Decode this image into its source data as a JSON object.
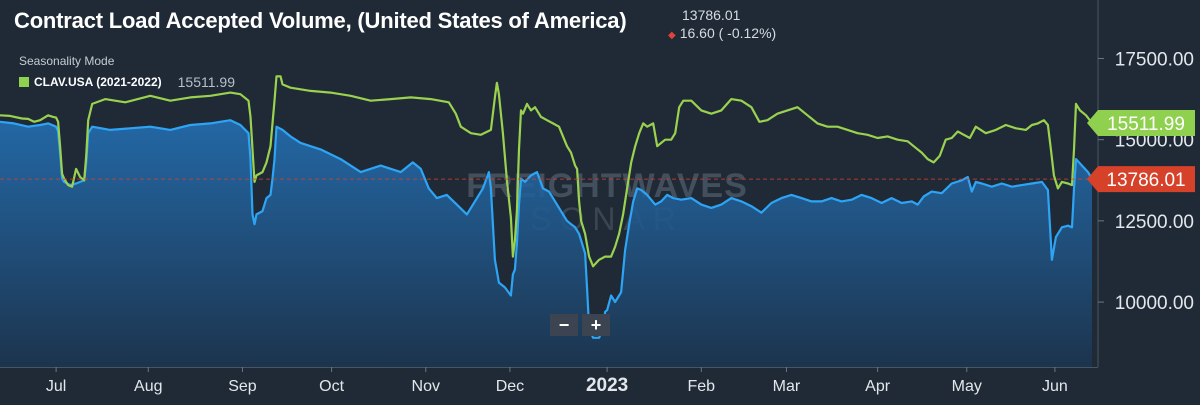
{
  "header": {
    "title": "Contract Load Accepted Volume, (United States of America)",
    "last_value": "13786.01",
    "change": "16.60 ( -0.12%)",
    "mode": "Seasonality Mode",
    "legend_label": "CLAV.USA (2021-2022)",
    "legend_value": "15511.99"
  },
  "watermark": {
    "line1": "FREIGHTWAVES",
    "line2": "SONAR"
  },
  "controls": {
    "zoom_out": "−",
    "zoom_in": "+"
  },
  "colors": {
    "background": "#1f2a36",
    "current": "#2ea4f5",
    "seasonal": "#9ad24f",
    "last_badge": "#d6412a",
    "seasonal_badge": "#8fd14f"
  },
  "chart_data": {
    "type": "line",
    "x_tick_labels": [
      "Jul",
      "Aug",
      "Sep",
      "Oct",
      "Nov",
      "Dec",
      "2023",
      "Feb",
      "Mar",
      "Apr",
      "May",
      "Jun"
    ],
    "y_tick_labels": [
      "17500.00",
      "15000.00",
      "12500.00",
      "10000.00"
    ],
    "ylim": [
      8000,
      19300
    ],
    "series": [
      {
        "name": "CLAV.USA (2021-2022)",
        "values": [
          [
            0,
            15750
          ],
          [
            10,
            15730
          ],
          [
            22,
            15650
          ],
          [
            28,
            15640
          ],
          [
            34,
            15550
          ],
          [
            40,
            15600
          ],
          [
            48,
            15750
          ],
          [
            53,
            15700
          ],
          [
            56,
            15680
          ],
          [
            58,
            15550
          ],
          [
            60,
            14800
          ],
          [
            62,
            13950
          ],
          [
            64,
            13800
          ],
          [
            68,
            13600
          ],
          [
            72,
            13550
          ],
          [
            76,
            14100
          ],
          [
            80,
            13850
          ],
          [
            84,
            13750
          ],
          [
            86,
            14500
          ],
          [
            88,
            15600
          ],
          [
            92,
            16100
          ],
          [
            105,
            16250
          ],
          [
            125,
            16150
          ],
          [
            150,
            16350
          ],
          [
            170,
            16200
          ],
          [
            190,
            16300
          ],
          [
            210,
            16350
          ],
          [
            230,
            16450
          ],
          [
            240,
            16400
          ],
          [
            248,
            16200
          ],
          [
            250,
            15700
          ],
          [
            252,
            14700
          ],
          [
            254,
            13700
          ],
          [
            256,
            13900
          ],
          [
            262,
            14000
          ],
          [
            266,
            14300
          ],
          [
            270,
            14800
          ],
          [
            272,
            15500
          ],
          [
            274,
            16200
          ],
          [
            276,
            16950
          ],
          [
            280,
            16950
          ],
          [
            282,
            16700
          ],
          [
            290,
            16600
          ],
          [
            310,
            16500
          ],
          [
            330,
            16450
          ],
          [
            350,
            16350
          ],
          [
            370,
            16200
          ],
          [
            390,
            16250
          ],
          [
            410,
            16300
          ],
          [
            430,
            16250
          ],
          [
            448,
            16150
          ],
          [
            455,
            15800
          ],
          [
            460,
            15400
          ],
          [
            470,
            15200
          ],
          [
            480,
            15150
          ],
          [
            490,
            15300
          ],
          [
            494,
            16300
          ],
          [
            496,
            16750
          ],
          [
            498,
            16400
          ],
          [
            502,
            15200
          ],
          [
            506,
            13750
          ],
          [
            510,
            12600
          ],
          [
            512,
            11400
          ],
          [
            514,
            11900
          ],
          [
            516,
            12800
          ],
          [
            518,
            14700
          ],
          [
            520,
            15900
          ],
          [
            522,
            15800
          ],
          [
            526,
            16100
          ],
          [
            530,
            15900
          ],
          [
            534,
            16000
          ],
          [
            540,
            15700
          ],
          [
            546,
            15600
          ],
          [
            552,
            15500
          ],
          [
            558,
            15400
          ],
          [
            562,
            15100
          ],
          [
            566,
            14800
          ],
          [
            570,
            14600
          ],
          [
            574,
            14200
          ],
          [
            576,
            14100
          ],
          [
            578,
            13100
          ],
          [
            580,
            12500
          ],
          [
            584,
            12100
          ],
          [
            588,
            11400
          ],
          [
            592,
            11100
          ],
          [
            598,
            11300
          ],
          [
            604,
            11400
          ],
          [
            610,
            11400
          ],
          [
            614,
            11700
          ],
          [
            618,
            12100
          ],
          [
            622,
            12700
          ],
          [
            626,
            13500
          ],
          [
            630,
            14300
          ],
          [
            634,
            14800
          ],
          [
            638,
            15200
          ],
          [
            642,
            15500
          ],
          [
            646,
            15400
          ],
          [
            652,
            15500
          ],
          [
            656,
            14800
          ],
          [
            660,
            14900
          ],
          [
            664,
            15000
          ],
          [
            670,
            15000
          ],
          [
            674,
            15200
          ],
          [
            678,
            16000
          ],
          [
            682,
            16200
          ],
          [
            690,
            16200
          ],
          [
            700,
            15900
          ],
          [
            710,
            15800
          ],
          [
            720,
            15900
          ],
          [
            730,
            16250
          ],
          [
            740,
            16200
          ],
          [
            750,
            16000
          ],
          [
            758,
            15550
          ],
          [
            766,
            15600
          ],
          [
            776,
            15800
          ],
          [
            786,
            15900
          ],
          [
            796,
            16000
          ],
          [
            806,
            15750
          ],
          [
            816,
            15500
          ],
          [
            826,
            15400
          ],
          [
            836,
            15400
          ],
          [
            846,
            15300
          ],
          [
            856,
            15200
          ],
          [
            866,
            15150
          ],
          [
            876,
            15050
          ],
          [
            886,
            15100
          ],
          [
            896,
            15000
          ],
          [
            906,
            14950
          ],
          [
            914,
            14750
          ],
          [
            920,
            14600
          ],
          [
            926,
            14400
          ],
          [
            932,
            14300
          ],
          [
            938,
            14500
          ],
          [
            944,
            15000
          ],
          [
            950,
            15050
          ],
          [
            956,
            15250
          ],
          [
            962,
            15150
          ],
          [
            968,
            15050
          ],
          [
            974,
            15400
          ],
          [
            984,
            15200
          ],
          [
            994,
            15300
          ],
          [
            1004,
            15450
          ],
          [
            1014,
            15350
          ],
          [
            1024,
            15300
          ],
          [
            1030,
            15450
          ],
          [
            1036,
            15500
          ],
          [
            1042,
            15600
          ],
          [
            1046,
            15450
          ],
          [
            1049,
            14700
          ],
          [
            1052,
            13900
          ],
          [
            1056,
            13500
          ],
          [
            1060,
            13700
          ],
          [
            1066,
            13650
          ],
          [
            1070,
            13600
          ],
          [
            1072,
            14700
          ],
          [
            1074,
            16100
          ],
          [
            1078,
            15900
          ],
          [
            1084,
            15750
          ],
          [
            1090,
            15511.99
          ]
        ]
      },
      {
        "name": "",
        "values": [
          [
            0,
            15550
          ],
          [
            14,
            15500
          ],
          [
            28,
            15400
          ],
          [
            40,
            15450
          ],
          [
            48,
            15500
          ],
          [
            56,
            15400
          ],
          [
            58,
            15250
          ],
          [
            60,
            14600
          ],
          [
            62,
            13800
          ],
          [
            64,
            13700
          ],
          [
            70,
            13600
          ],
          [
            76,
            13650
          ],
          [
            80,
            13700
          ],
          [
            84,
            13750
          ],
          [
            86,
            14300
          ],
          [
            88,
            15200
          ],
          [
            92,
            15400
          ],
          [
            110,
            15300
          ],
          [
            130,
            15350
          ],
          [
            150,
            15400
          ],
          [
            170,
            15300
          ],
          [
            190,
            15450
          ],
          [
            210,
            15500
          ],
          [
            230,
            15600
          ],
          [
            240,
            15450
          ],
          [
            248,
            15200
          ],
          [
            250,
            14400
          ],
          [
            252,
            12700
          ],
          [
            254,
            12400
          ],
          [
            256,
            12700
          ],
          [
            262,
            12800
          ],
          [
            266,
            13200
          ],
          [
            270,
            13300
          ],
          [
            272,
            13800
          ],
          [
            274,
            14400
          ],
          [
            276,
            15400
          ],
          [
            282,
            15300
          ],
          [
            290,
            15100
          ],
          [
            300,
            14900
          ],
          [
            320,
            14700
          ],
          [
            340,
            14400
          ],
          [
            360,
            14000
          ],
          [
            380,
            14200
          ],
          [
            400,
            14000
          ],
          [
            412,
            14300
          ],
          [
            420,
            14100
          ],
          [
            428,
            13500
          ],
          [
            436,
            13200
          ],
          [
            446,
            13300
          ],
          [
            456,
            13000
          ],
          [
            466,
            12700
          ],
          [
            474,
            13100
          ],
          [
            482,
            13500
          ],
          [
            488,
            14000
          ],
          [
            490,
            13500
          ],
          [
            494,
            11300
          ],
          [
            498,
            10600
          ],
          [
            504,
            10450
          ],
          [
            510,
            10200
          ],
          [
            512,
            10850
          ],
          [
            514,
            11000
          ],
          [
            516,
            11800
          ],
          [
            518,
            13000
          ],
          [
            520,
            13800
          ],
          [
            524,
            13700
          ],
          [
            530,
            13900
          ],
          [
            536,
            14000
          ],
          [
            542,
            13500
          ],
          [
            548,
            13400
          ],
          [
            556,
            13000
          ],
          [
            562,
            12700
          ],
          [
            566,
            12500
          ],
          [
            570,
            12400
          ],
          [
            574,
            12300
          ],
          [
            578,
            12100
          ],
          [
            582,
            11700
          ],
          [
            584,
            11500
          ],
          [
            586,
            10400
          ],
          [
            588,
            9200
          ],
          [
            592,
            8900
          ],
          [
            598,
            8900
          ],
          [
            602,
            9200
          ],
          [
            604,
            9700
          ],
          [
            606,
            9750
          ],
          [
            610,
            10200
          ],
          [
            614,
            10000
          ],
          [
            620,
            10300
          ],
          [
            624,
            11600
          ],
          [
            628,
            12400
          ],
          [
            632,
            13100
          ],
          [
            636,
            13500
          ],
          [
            640,
            13450
          ],
          [
            646,
            13300
          ],
          [
            654,
            13000
          ],
          [
            660,
            13100
          ],
          [
            666,
            13300
          ],
          [
            672,
            13200
          ],
          [
            680,
            13150
          ],
          [
            690,
            13200
          ],
          [
            700,
            13000
          ],
          [
            710,
            12900
          ],
          [
            720,
            13000
          ],
          [
            730,
            13200
          ],
          [
            740,
            13100
          ],
          [
            750,
            12950
          ],
          [
            760,
            12750
          ],
          [
            770,
            13050
          ],
          [
            780,
            13200
          ],
          [
            790,
            13300
          ],
          [
            800,
            13200
          ],
          [
            810,
            13100
          ],
          [
            820,
            13100
          ],
          [
            830,
            13200
          ],
          [
            840,
            13100
          ],
          [
            850,
            13150
          ],
          [
            860,
            13300
          ],
          [
            870,
            13200
          ],
          [
            880,
            13050
          ],
          [
            890,
            13200
          ],
          [
            900,
            13050
          ],
          [
            910,
            13100
          ],
          [
            916,
            13000
          ],
          [
            922,
            13250
          ],
          [
            930,
            13400
          ],
          [
            940,
            13350
          ],
          [
            950,
            13650
          ],
          [
            960,
            13750
          ],
          [
            966,
            13850
          ],
          [
            970,
            13400
          ],
          [
            974,
            13700
          ],
          [
            980,
            13650
          ],
          [
            990,
            13550
          ],
          [
            1000,
            13650
          ],
          [
            1010,
            13550
          ],
          [
            1020,
            13600
          ],
          [
            1030,
            13650
          ],
          [
            1040,
            13700
          ],
          [
            1046,
            13450
          ],
          [
            1050,
            11300
          ],
          [
            1054,
            12000
          ],
          [
            1060,
            12300
          ],
          [
            1066,
            12350
          ],
          [
            1070,
            12300
          ],
          [
            1072,
            13500
          ],
          [
            1074,
            14400
          ],
          [
            1080,
            14200
          ],
          [
            1086,
            14000
          ],
          [
            1090,
            13786.01
          ]
        ]
      }
    ],
    "last_values": {
      "seasonal": "15511.99",
      "current": "13786.01"
    }
  }
}
